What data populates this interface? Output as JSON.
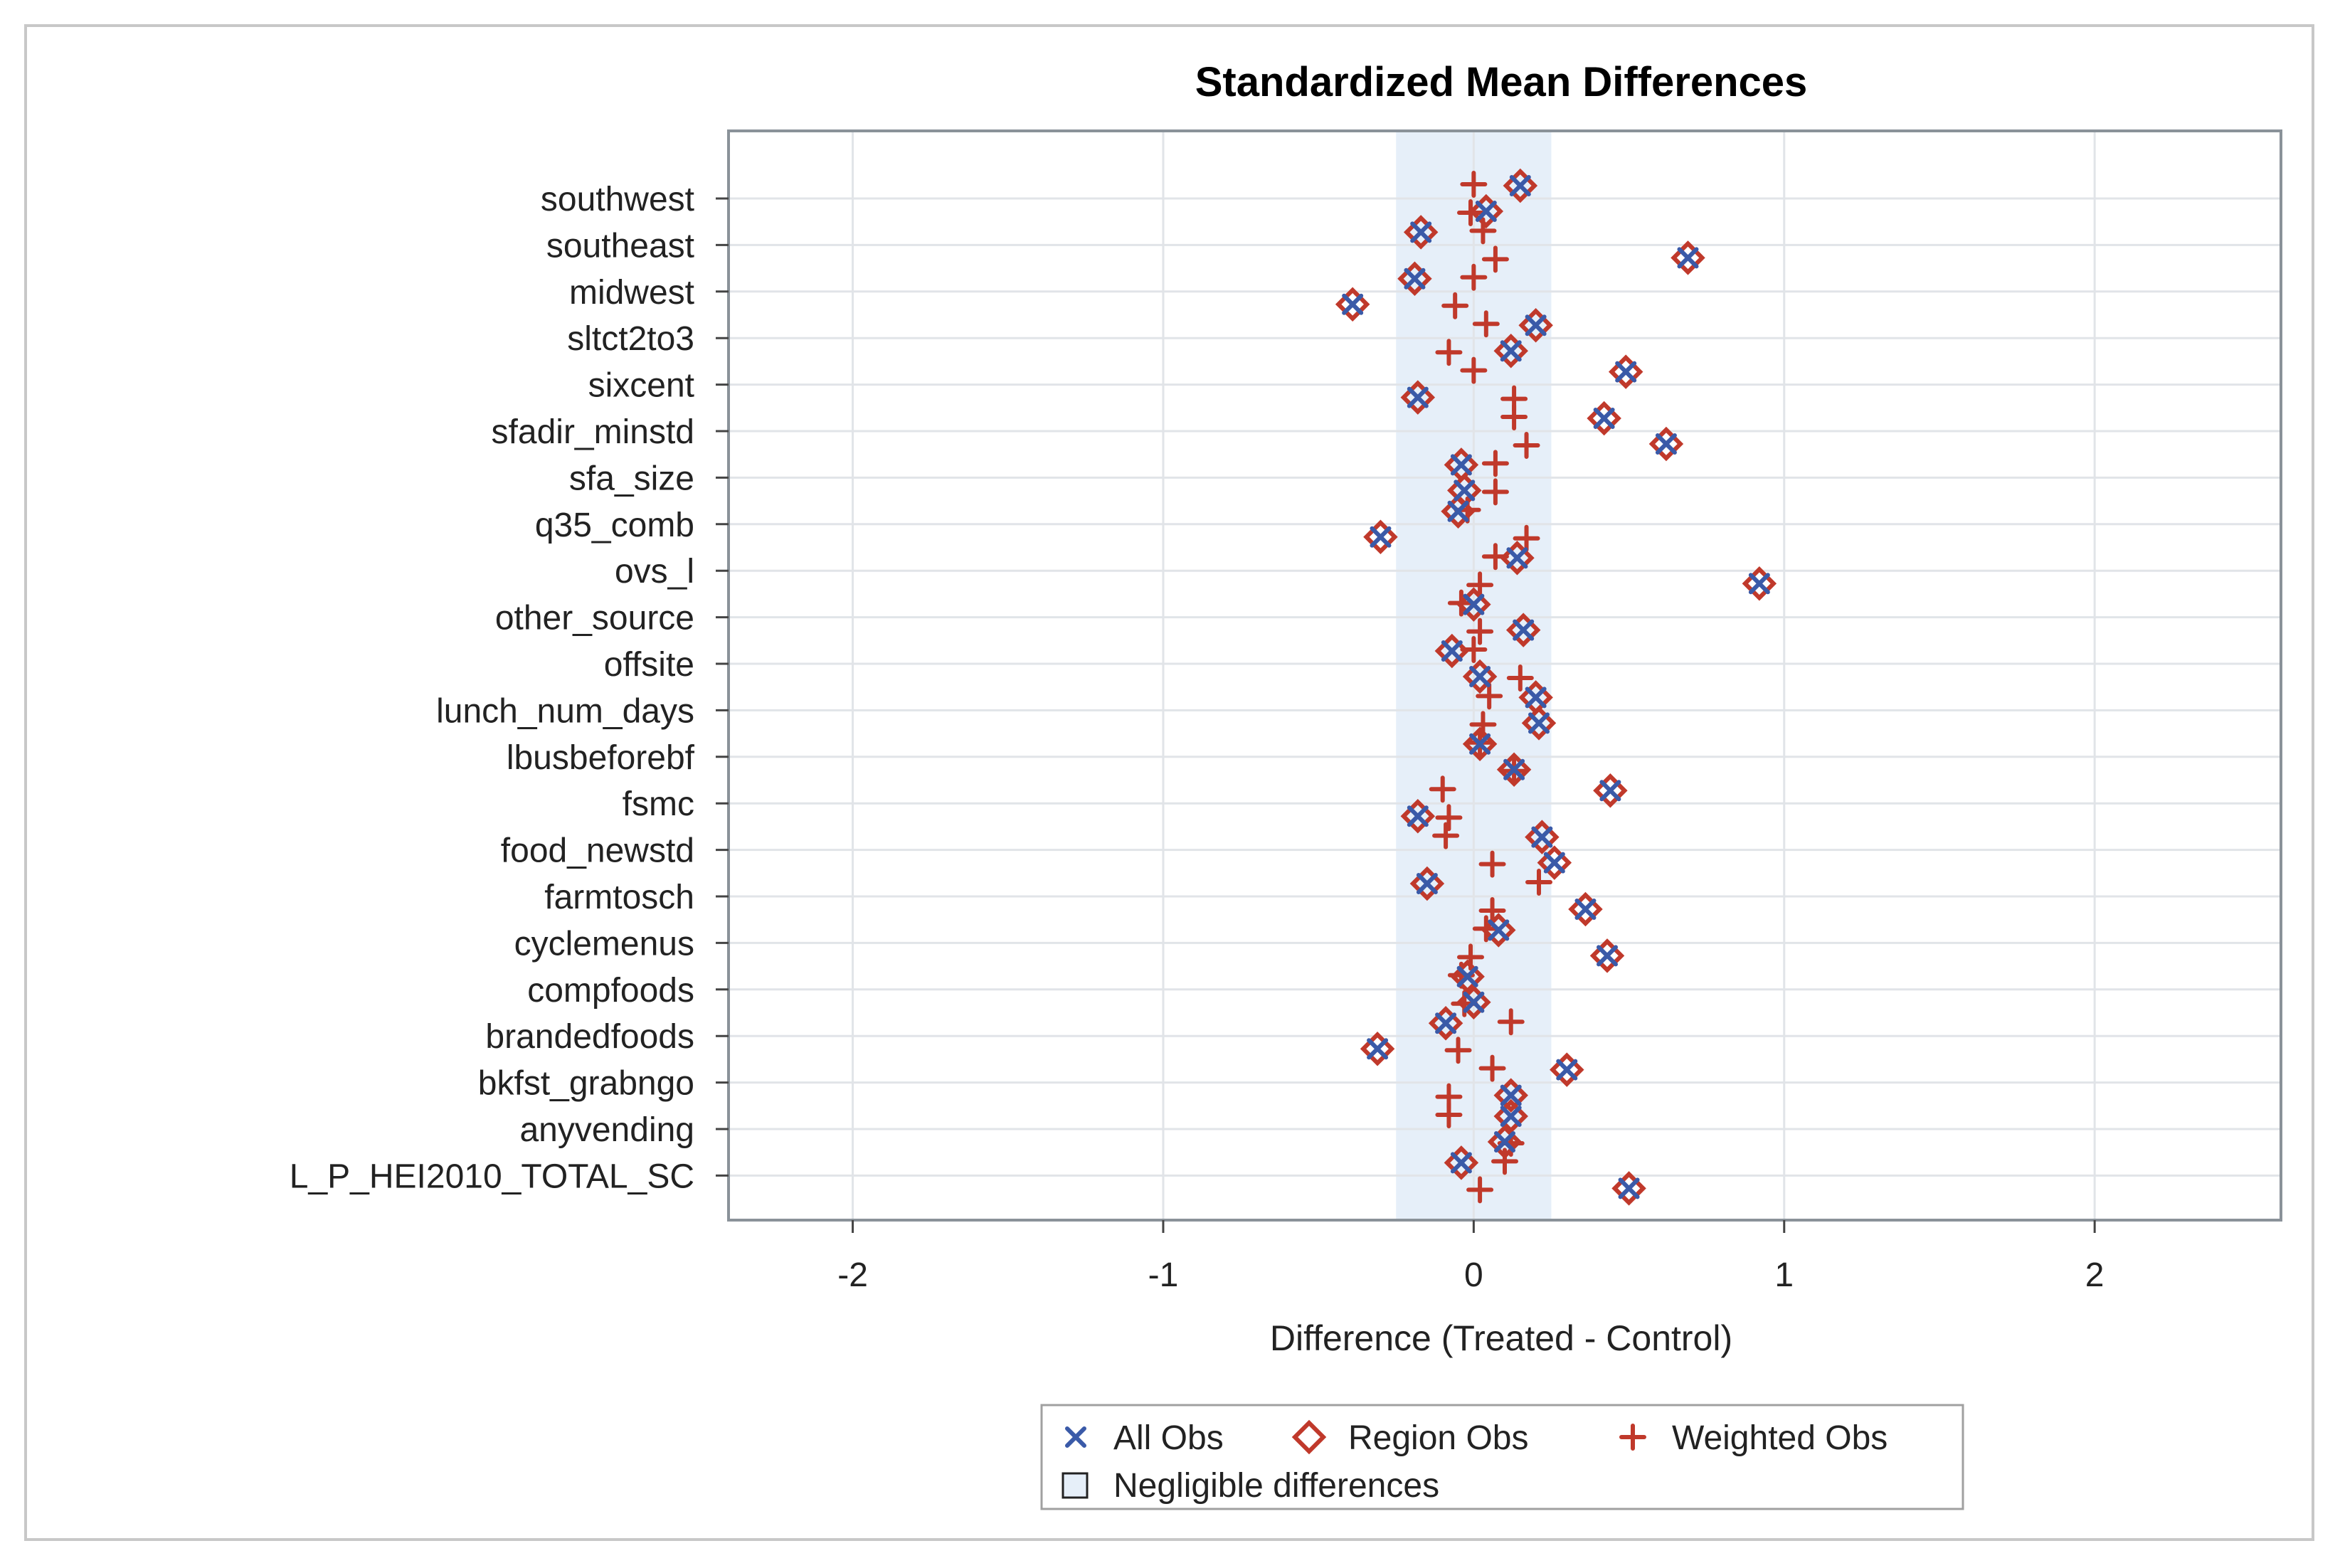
{
  "chart_data": {
    "type": "scatter",
    "title": "Standardized Mean Differences",
    "xlabel": "Difference (Treated - Control)",
    "ylabel": "",
    "xlim": [
      -2.4,
      2.6
    ],
    "xticks": [
      -2,
      -1,
      0,
      1,
      2
    ],
    "xtick_labels": [
      "-2",
      "-1",
      "0",
      "1",
      "2"
    ],
    "negligible_band": [
      -0.25,
      0.25
    ],
    "grid": true,
    "legend_position": "bottom",
    "categories": [
      "southwest",
      "southeast",
      "midwest",
      "sltct2to3",
      "sixcent",
      "sfadir_minstd",
      "sfa_size",
      "q35_comb",
      "ovs_l",
      "other_source",
      "offsite",
      "lunch_num_days",
      "lbusbeforebf",
      "fsmc",
      "food_newstd",
      "farmtosch",
      "cyclemenus",
      "compfoods",
      "brandedfoods",
      "bkfst_grabngo",
      "anyvending",
      "L_P_HEI2010_TOTAL_SC"
    ],
    "series": [
      {
        "name": "All Obs",
        "marker": "x",
        "color": "#3a5aa8",
        "values": [
          0.15,
          -0.17,
          -0.19,
          0.2,
          0.49,
          0.42,
          -0.04,
          -0.05,
          0.14,
          0.0,
          -0.07,
          0.2,
          0.02,
          0.44,
          0.22,
          -0.15,
          0.08,
          -0.02,
          -0.09,
          0.3,
          0.12,
          -0.04
        ]
      },
      {
        "name": "All Obs",
        "marker": "x",
        "color": "#3a5aa8",
        "values": [
          0.04,
          0.69,
          -0.39,
          0.12,
          -0.18,
          0.62,
          -0.03,
          -0.3,
          0.92,
          0.16,
          0.02,
          0.21,
          0.13,
          -0.18,
          0.26,
          0.36,
          0.43,
          0.0,
          -0.31,
          0.12,
          0.1,
          0.5
        ]
      },
      {
        "name": "Region Obs",
        "marker": "diamond",
        "color": "#c0392b",
        "values": [
          0.15,
          -0.17,
          -0.19,
          0.2,
          0.49,
          0.42,
          -0.04,
          -0.05,
          0.14,
          0.0,
          -0.07,
          0.2,
          0.02,
          0.44,
          0.22,
          -0.15,
          0.08,
          -0.02,
          -0.09,
          0.3,
          0.12,
          -0.04
        ]
      },
      {
        "name": "Region Obs",
        "marker": "diamond",
        "color": "#c0392b",
        "values": [
          0.04,
          0.69,
          -0.39,
          0.12,
          -0.18,
          0.62,
          -0.03,
          -0.3,
          0.92,
          0.16,
          0.02,
          0.21,
          0.13,
          -0.18,
          0.26,
          0.36,
          0.43,
          0.0,
          -0.31,
          0.12,
          0.1,
          0.5
        ]
      },
      {
        "name": "Weighted Obs",
        "marker": "plus",
        "color": "#c0392b",
        "values": [
          0.0,
          0.03,
          0.0,
          0.04,
          0.0,
          0.13,
          0.07,
          -0.02,
          0.07,
          -0.04,
          0.0,
          0.05,
          0.02,
          -0.1,
          -0.09,
          0.21,
          0.04,
          -0.04,
          0.12,
          0.06,
          -0.08,
          0.1
        ]
      },
      {
        "name": "Weighted Obs",
        "marker": "plus",
        "color": "#c0392b",
        "values": [
          -0.01,
          0.07,
          -0.06,
          -0.08,
          0.13,
          0.17,
          0.07,
          0.17,
          0.02,
          0.02,
          0.15,
          0.03,
          0.13,
          -0.08,
          0.06,
          0.06,
          -0.01,
          -0.03,
          -0.05,
          -0.08,
          0.12,
          0.02
        ]
      }
    ],
    "legend": {
      "entries": [
        "All Obs",
        "Region Obs",
        "Weighted Obs",
        "Negligible differences"
      ],
      "colors": {
        "all_obs": "#3a5aa8",
        "region_obs": "#c0392b",
        "weighted_obs": "#c0392b",
        "band": "#e6eff9"
      }
    }
  }
}
